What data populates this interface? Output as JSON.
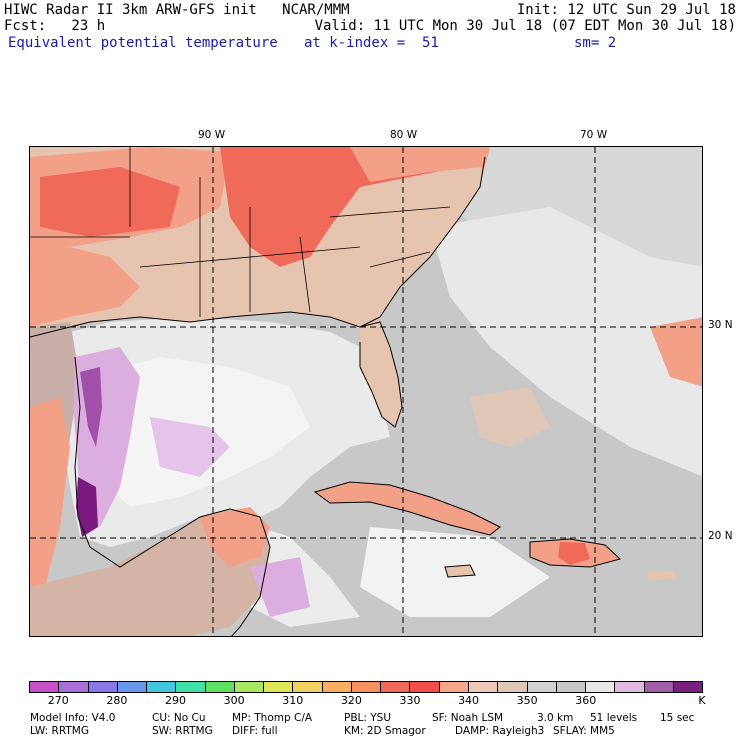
{
  "header": {
    "line1_left": "HIWC Radar II 3km ARW-GFS init   NCAR/MMM",
    "line1_right": "Init: 12 UTC Sun 29 Jul 18",
    "line2_left": "Fcst:   23 h",
    "line2_right": "Valid: 11 UTC Mon 30 Jul 18 (07 EDT Mon 30 Jul 18)",
    "field_name": "Equivalent potential temperature",
    "level": "at k-index =  51",
    "smoothing": "sm= 2"
  },
  "map": {
    "lon_labels": [
      "90 W",
      "80 W",
      "70 W"
    ],
    "lat_labels": [
      "30 N",
      "20 N"
    ],
    "colors": {
      "ocean_gray": "#c8c8c8",
      "light_gray": "#dcdcdc",
      "white_cloud": "#f0f0f0",
      "land_tan": "#e6c4b0",
      "land_salmon": "#f2a088",
      "warm_red": "#f06a5a",
      "lavender": "#dcaee0",
      "violet": "#a050a8",
      "purple": "#7a1a80"
    }
  },
  "colorbar": {
    "unit": "K",
    "labels": [
      "270",
      "280",
      "290",
      "300",
      "310",
      "320",
      "330",
      "340",
      "350",
      "360"
    ],
    "colors": [
      "#c850c8",
      "#a870d8",
      "#8878e8",
      "#6898ec",
      "#40c8e0",
      "#40e0a8",
      "#60e060",
      "#a8e860",
      "#e0e858",
      "#f0d060",
      "#f8b060",
      "#f89060",
      "#f06a5a",
      "#f05048",
      "#f8a888",
      "#f0c8b8",
      "#e0c8b8",
      "#d0d0d0",
      "#c8c8c8",
      "#e8e8e8",
      "#e0b8e0",
      "#a060a8",
      "#782080"
    ]
  },
  "footer": {
    "row1": [
      "Model Info: V4.0",
      "CU: No Cu",
      "MP: Thomp C/A",
      "PBL: YSU",
      "SF: Noah LSM",
      "3.0 km",
      "51 levels",
      "15 sec"
    ],
    "row2": [
      "LW: RRTMG",
      "SW: RRTMG",
      "DIFF: full",
      "KM: 2D Smagor",
      "DAMP: Rayleigh3",
      "SFLAY: MM5"
    ]
  }
}
